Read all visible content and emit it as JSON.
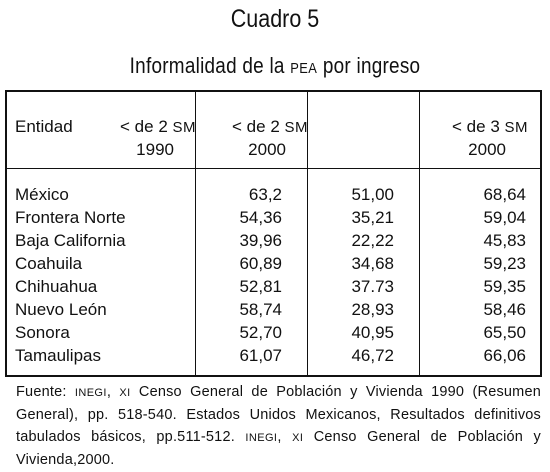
{
  "title": "Cuadro 5",
  "subtitle": {
    "part1": "Informalidad de la ",
    "pea": "PEA",
    "part2": " por ingreso"
  },
  "table": {
    "columns": [
      {
        "label": "Entidad"
      },
      {
        "line1_a": "< de 2 ",
        "unit": "SM",
        "line2": "1990"
      },
      {
        "line1_a": "< de 2 ",
        "unit": "SM",
        "line2": "2000"
      },
      {
        "line1_a": "< de 3 ",
        "unit": "SM",
        "line2": "2000"
      }
    ],
    "rows": [
      {
        "entidad": "México",
        "v1": "63,2",
        "v2": "51,00",
        "v3": "68,64"
      },
      {
        "entidad": "Frontera Norte",
        "v1": "54,36",
        "v2": "35,21",
        "v3": "59,04"
      },
      {
        "entidad": "Baja California",
        "v1": "39,96",
        "v2": "22,22",
        "v3": "45,83"
      },
      {
        "entidad": "Coahuila",
        "v1": "60,89",
        "v2": "34,68",
        "v3": "59,23"
      },
      {
        "entidad": "Chihuahua",
        "v1": "52,81",
        "v2": "37.73",
        "v3": "59,35"
      },
      {
        "entidad": "Nuevo León",
        "v1": "58,74",
        "v2": "28,93",
        "v3": "58,46"
      },
      {
        "entidad": "Sonora",
        "v1": "52,70",
        "v2": "40,95",
        "v3": "65,50"
      },
      {
        "entidad": "Tamaulipas",
        "v1": "61,07",
        "v2": "46,72",
        "v3": "66,06"
      }
    ]
  },
  "source": {
    "s1": "Fuente: ",
    "s2": "INEGI",
    "s3": ", ",
    "s4": "XI",
    "s5": " Censo General de Población y Vivienda 1990 (Resumen General), pp. 518-540. Estados Unidos Mexicanos, Resultados definitivos tabulados básicos, pp.511-512. ",
    "s6": "INEGI",
    "s7": ", ",
    "s8": "XI",
    "s9": " Censo General de Población y Vivienda,2000."
  }
}
